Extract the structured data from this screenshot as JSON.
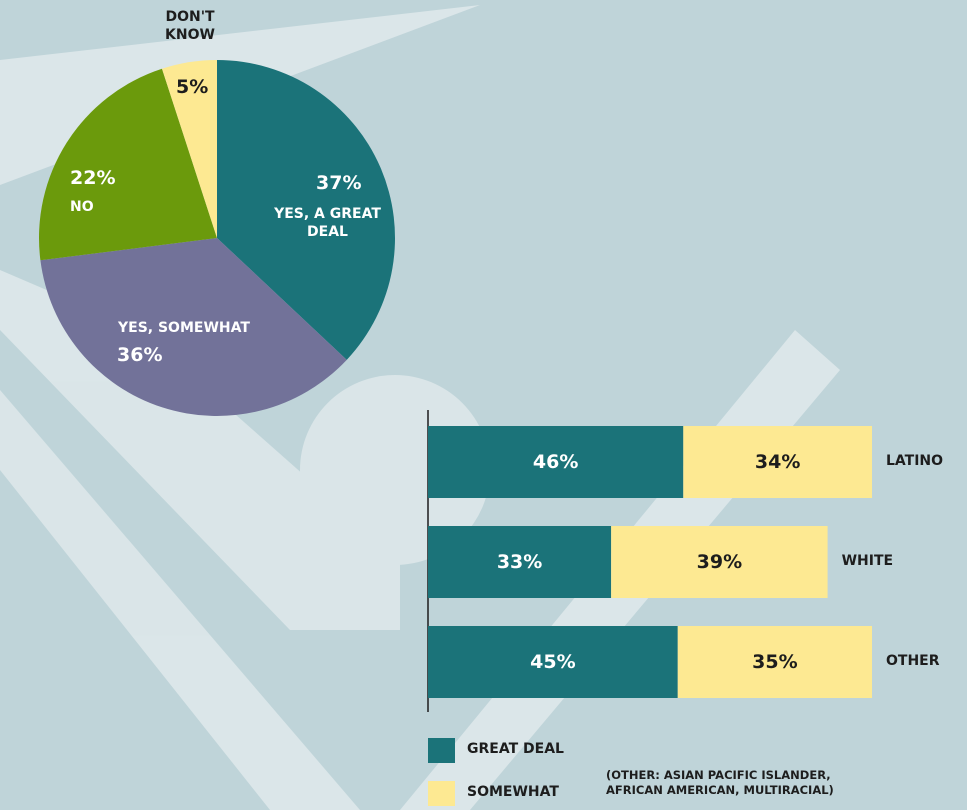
{
  "chart_data": [
    {
      "type": "pie",
      "categories": [
        "YES, A GREAT DEAL",
        "YES, SOMEWHAT",
        "NO",
        "DON'T KNOW"
      ],
      "values": [
        37,
        36,
        22,
        5
      ],
      "value_labels": [
        "37%",
        "36%",
        "22%",
        "5%"
      ],
      "colors": [
        "#1b7379",
        "#727299",
        "#6b9a0c",
        "#fde992"
      ]
    },
    {
      "type": "bar",
      "orientation": "horizontal",
      "stacked": true,
      "categories": [
        "LATINO",
        "WHITE",
        "OTHER"
      ],
      "series": [
        {
          "name": "GREAT DEAL",
          "color": "#1b7379",
          "values": [
            46,
            33,
            45
          ],
          "value_labels": [
            "46%",
            "33%",
            "45%"
          ]
        },
        {
          "name": "SOMEWHAT",
          "color": "#fde992",
          "values": [
            34,
            39,
            35
          ],
          "value_labels": [
            "34%",
            "39%",
            "35%"
          ]
        }
      ],
      "note": "(OTHER: ASIAN PACIFIC ISLANDER, AFRICAN AMERICAN, MULTIRACIAL)"
    }
  ]
}
